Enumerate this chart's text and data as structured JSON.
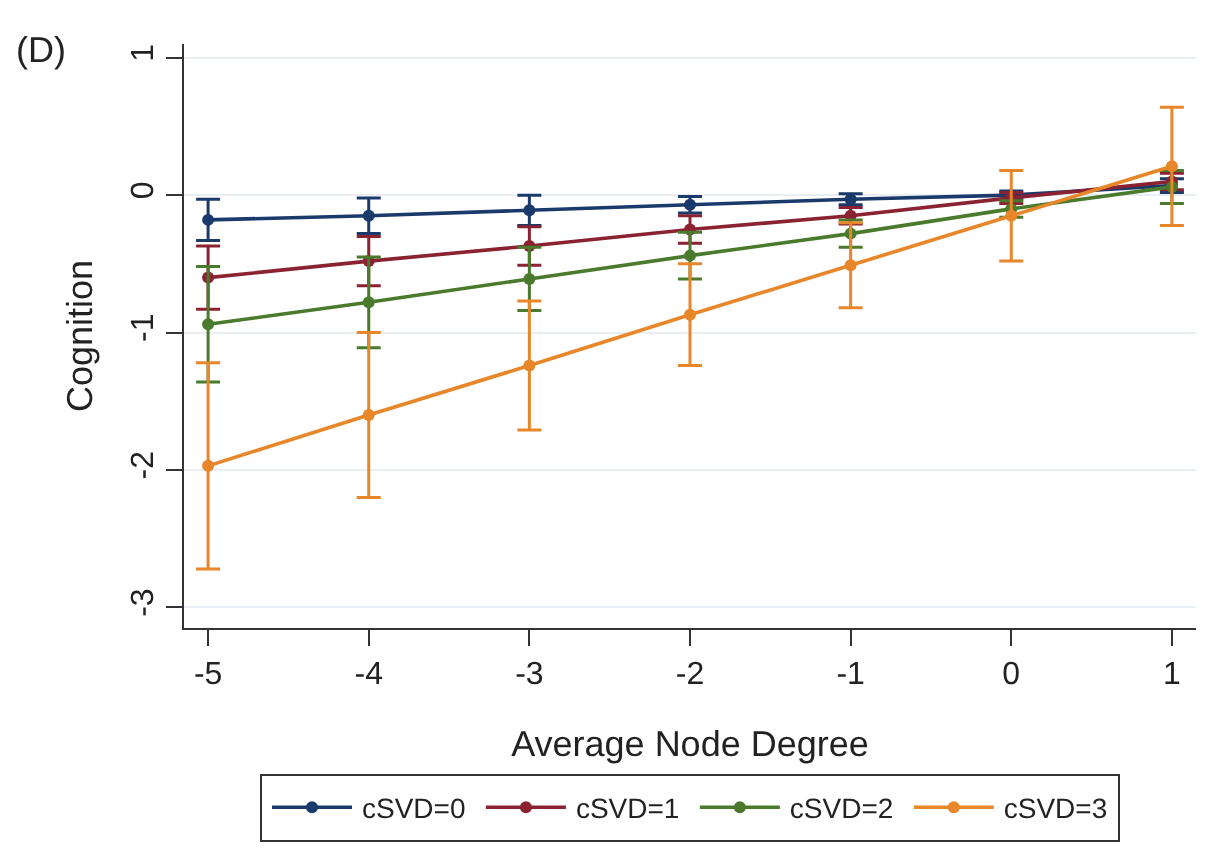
{
  "chart_data": {
    "type": "line",
    "title": "(D)",
    "xlabel": "Average Node Degree",
    "ylabel": "Cognition",
    "x": [
      -5,
      -4,
      -3,
      -2,
      -1,
      0,
      1
    ],
    "series": [
      {
        "name": "cSVD=0",
        "color": "#1a3a6b",
        "values": [
          -0.18,
          -0.15,
          -0.11,
          -0.07,
          -0.03,
          0.0,
          0.07
        ],
        "errors": [
          0.15,
          0.13,
          0.11,
          0.06,
          0.04,
          0.03,
          0.05
        ]
      },
      {
        "name": "cSVD=1",
        "color": "#8b2232",
        "values": [
          -0.6,
          -0.48,
          -0.37,
          -0.25,
          -0.15,
          -0.02,
          0.1
        ],
        "errors": [
          0.23,
          0.18,
          0.14,
          0.1,
          0.06,
          0.04,
          0.06
        ]
      },
      {
        "name": "cSVD=2",
        "color": "#4a7a2c",
        "values": [
          -0.94,
          -0.78,
          -0.61,
          -0.44,
          -0.28,
          -0.1,
          0.06
        ],
        "errors": [
          0.42,
          0.33,
          0.23,
          0.17,
          0.1,
          0.06,
          0.12
        ]
      },
      {
        "name": "cSVD=3",
        "color": "#e8862a",
        "values": [
          -1.97,
          -1.6,
          -1.24,
          -0.87,
          -0.51,
          -0.15,
          0.21
        ],
        "errors": [
          0.75,
          0.6,
          0.47,
          0.37,
          0.31,
          0.33,
          0.43
        ]
      }
    ],
    "xlim": [
      -5.15,
      1.15
    ],
    "xticks": [
      -5,
      -4,
      -3,
      -2,
      -1,
      0,
      1
    ],
    "ylim": [
      -3.15,
      1.1
    ],
    "yticks": [
      -3,
      -2,
      -1,
      0,
      1
    ],
    "grid": "y",
    "legend": "bottom",
    "marker": "circle",
    "line_style": "solid"
  }
}
